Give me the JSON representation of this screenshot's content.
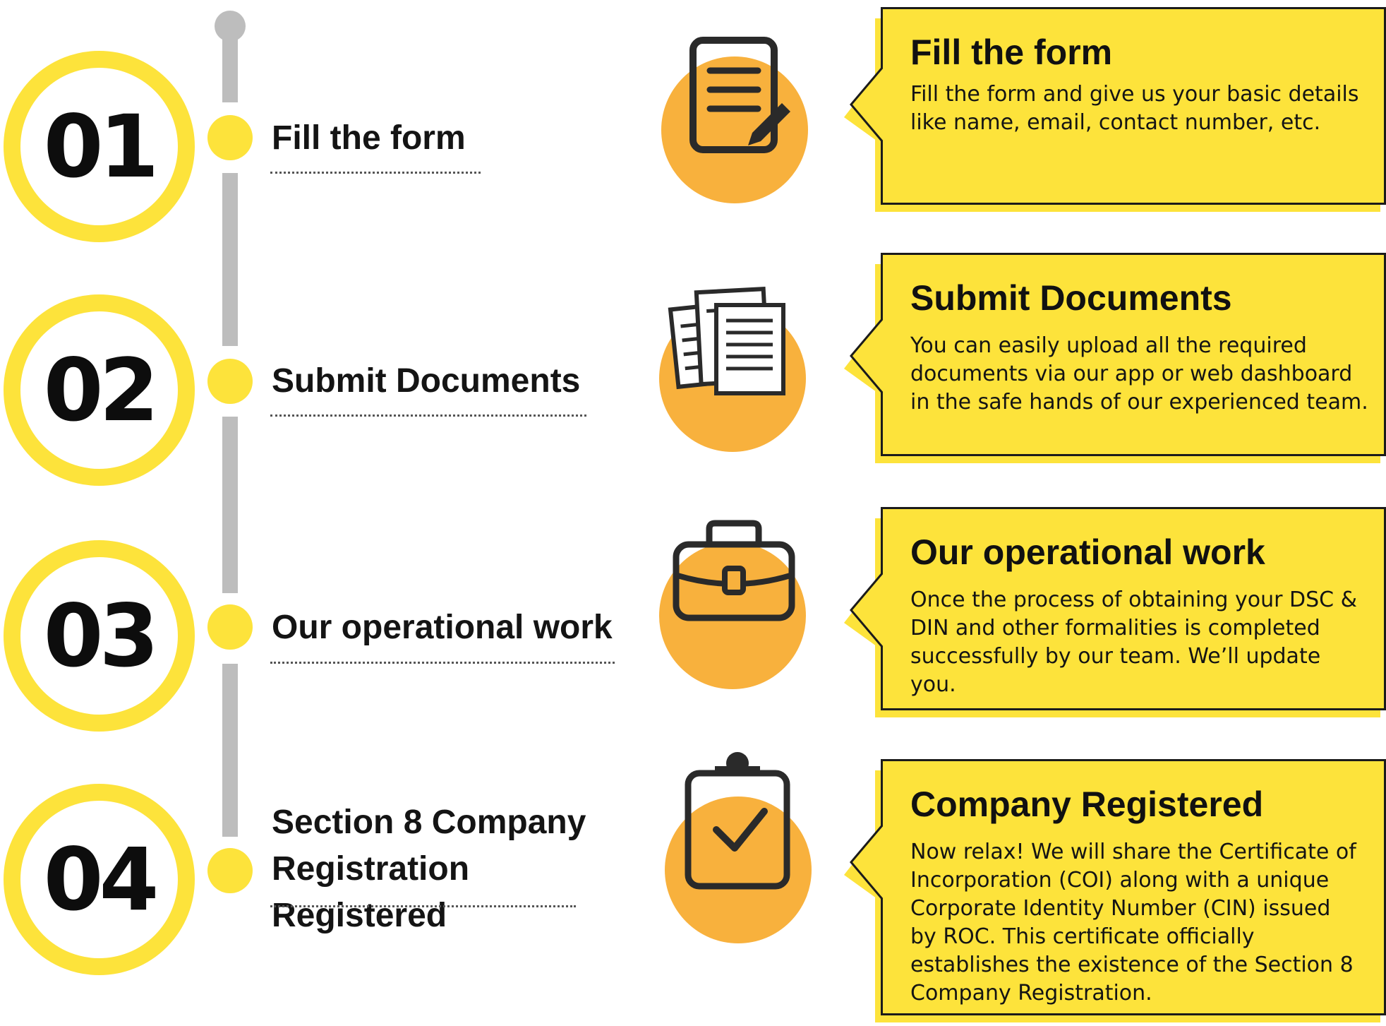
{
  "steps": [
    {
      "number": "01",
      "label": "Fill the form",
      "icon": "document-pencil-icon",
      "card_title": "Fill the form",
      "card_text": "Fill the form and give us your basic details like name, email, contact number, etc."
    },
    {
      "number": "02",
      "label": "Submit Documents",
      "icon": "stacked-documents-icon",
      "card_title": "Submit Documents",
      "card_text": "You can easily upload all the required documents via our app or web dashboard in the safe hands of our experienced team."
    },
    {
      "number": "03",
      "label": "Our operational work",
      "icon": "briefcase-icon",
      "card_title": "Our operational work",
      "card_text": "Once the process of obtaining your DSC & DIN and other formalities is completed successfully by our team. We’ll update you."
    },
    {
      "number": "04",
      "label": "Section 8 Company Registration Registered",
      "icon": "clipboard-check-icon",
      "card_title": "Company Registered",
      "card_text": "Now relax! We will share the Certificate of Incorporation (COI) along with a unique Corporate Identity Number (CIN) issued by ROC. This certificate officially establishes the existence of the Section 8 Company Registration."
    }
  ],
  "colors": {
    "accent_yellow": "#fde33b",
    "icon_orange": "#f8b13d",
    "timeline_gray": "#bdbdbd",
    "text_dark": "#111111"
  }
}
